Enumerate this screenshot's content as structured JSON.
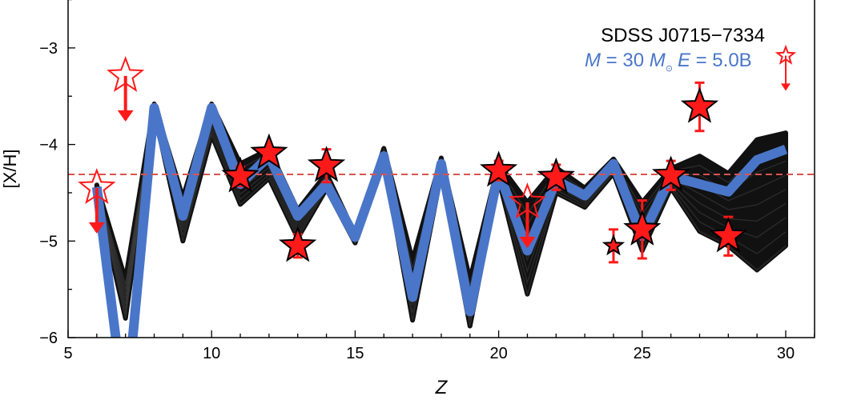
{
  "chart_data": {
    "type": "line",
    "xlabel": "Z",
    "ylabel": "[X/H]",
    "xlim": [
      5,
      31
    ],
    "ylim": [
      -6,
      -2.5
    ],
    "xticks": [
      5,
      10,
      15,
      20,
      25,
      30
    ],
    "xtick_labels": [
      "5",
      "10",
      "15",
      "20",
      "25",
      "30"
    ],
    "yticks": [
      -6,
      -5,
      -4,
      -3
    ],
    "ytick_labels": [
      "−6",
      "−5",
      "−4",
      "−3"
    ],
    "annotation": {
      "star_name": "SDSS J0715−7334",
      "model_M_symbol": "M",
      "model_M_text": " = 30 ",
      "model_Msun_symbol": "M",
      "model_sun": "⊙",
      "model_E_symbol": "E",
      "model_E_text": " = 5.0B"
    },
    "reference_line": {
      "y": -4.31,
      "style": "dashed",
      "color": "#d9534f"
    },
    "model": {
      "name": "M = 30 M⊙ E = 5.0B",
      "color": "#4a76c9",
      "x": [
        6,
        7,
        8,
        9,
        10,
        11,
        12,
        13,
        14,
        15,
        16,
        17,
        18,
        19,
        20,
        21,
        22,
        23,
        24,
        25,
        26,
        27,
        28,
        29,
        30
      ],
      "y": [
        -4.44,
        -6.8,
        -3.62,
        -4.74,
        -3.62,
        -4.41,
        -4.12,
        -4.74,
        -4.41,
        -4.96,
        -4.12,
        -5.58,
        -4.2,
        -5.73,
        -4.28,
        -5.1,
        -4.37,
        -4.53,
        -4.2,
        -4.95,
        -4.33,
        -4.41,
        -4.49,
        -4.16,
        -4.05
      ]
    },
    "ensemble": {
      "color": "#000000",
      "x": [
        6,
        7,
        8,
        9,
        10,
        11,
        12,
        13,
        14,
        15,
        16,
        17,
        18,
        19,
        20,
        21,
        22,
        23,
        24,
        25,
        26,
        27,
        28,
        29,
        30
      ],
      "y_min": [
        -4.5,
        -5.8,
        -3.66,
        -5.0,
        -3.9,
        -4.62,
        -4.35,
        -4.97,
        -4.46,
        -5.02,
        -4.16,
        -5.82,
        -4.3,
        -5.88,
        -4.36,
        -5.55,
        -4.5,
        -4.65,
        -4.3,
        -5.1,
        -4.45,
        -4.9,
        -5.05,
        -5.3,
        -5.05
      ],
      "y_max": [
        -4.42,
        -5.4,
        -3.58,
        -4.55,
        -3.58,
        -4.2,
        -4.05,
        -4.68,
        -4.3,
        -4.93,
        -4.04,
        -5.2,
        -4.14,
        -5.4,
        -4.2,
        -4.6,
        -4.24,
        -4.45,
        -4.15,
        -4.6,
        -4.25,
        -4.12,
        -4.3,
        -3.95,
        -3.88
      ]
    },
    "observations": {
      "color": "#ff1a1a",
      "points": [
        {
          "z": 6,
          "y": -4.45,
          "err": 0,
          "type": "upper_limit"
        },
        {
          "z": 7,
          "y": -3.29,
          "err": 0,
          "type": "upper_limit"
        },
        {
          "z": 11,
          "y": -4.33,
          "err": 0.1,
          "type": "detection"
        },
        {
          "z": 12,
          "y": -4.09,
          "err": 0.06,
          "type": "detection"
        },
        {
          "z": 13,
          "y": -5.05,
          "err": 0.12,
          "type": "detection"
        },
        {
          "z": 14,
          "y": -4.22,
          "err": 0.17,
          "type": "detection"
        },
        {
          "z": 20,
          "y": -4.27,
          "err": 0.1,
          "type": "detection"
        },
        {
          "z": 21,
          "y": -4.6,
          "err": 0,
          "type": "upper_limit"
        },
        {
          "z": 22,
          "y": -4.34,
          "err": 0.13,
          "type": "detection"
        },
        {
          "z": 24,
          "y": -5.05,
          "err": 0.17,
          "type": "detection_small"
        },
        {
          "z": 25,
          "y": -4.88,
          "err": 0.3,
          "type": "detection"
        },
        {
          "z": 26,
          "y": -4.32,
          "err": 0.15,
          "type": "detection"
        },
        {
          "z": 27,
          "y": -3.61,
          "err": 0.25,
          "type": "detection"
        },
        {
          "z": 28,
          "y": -4.95,
          "err": 0.2,
          "type": "detection"
        },
        {
          "z": 30,
          "y": -3.08,
          "err": 0,
          "type": "upper_limit_small"
        }
      ]
    }
  }
}
